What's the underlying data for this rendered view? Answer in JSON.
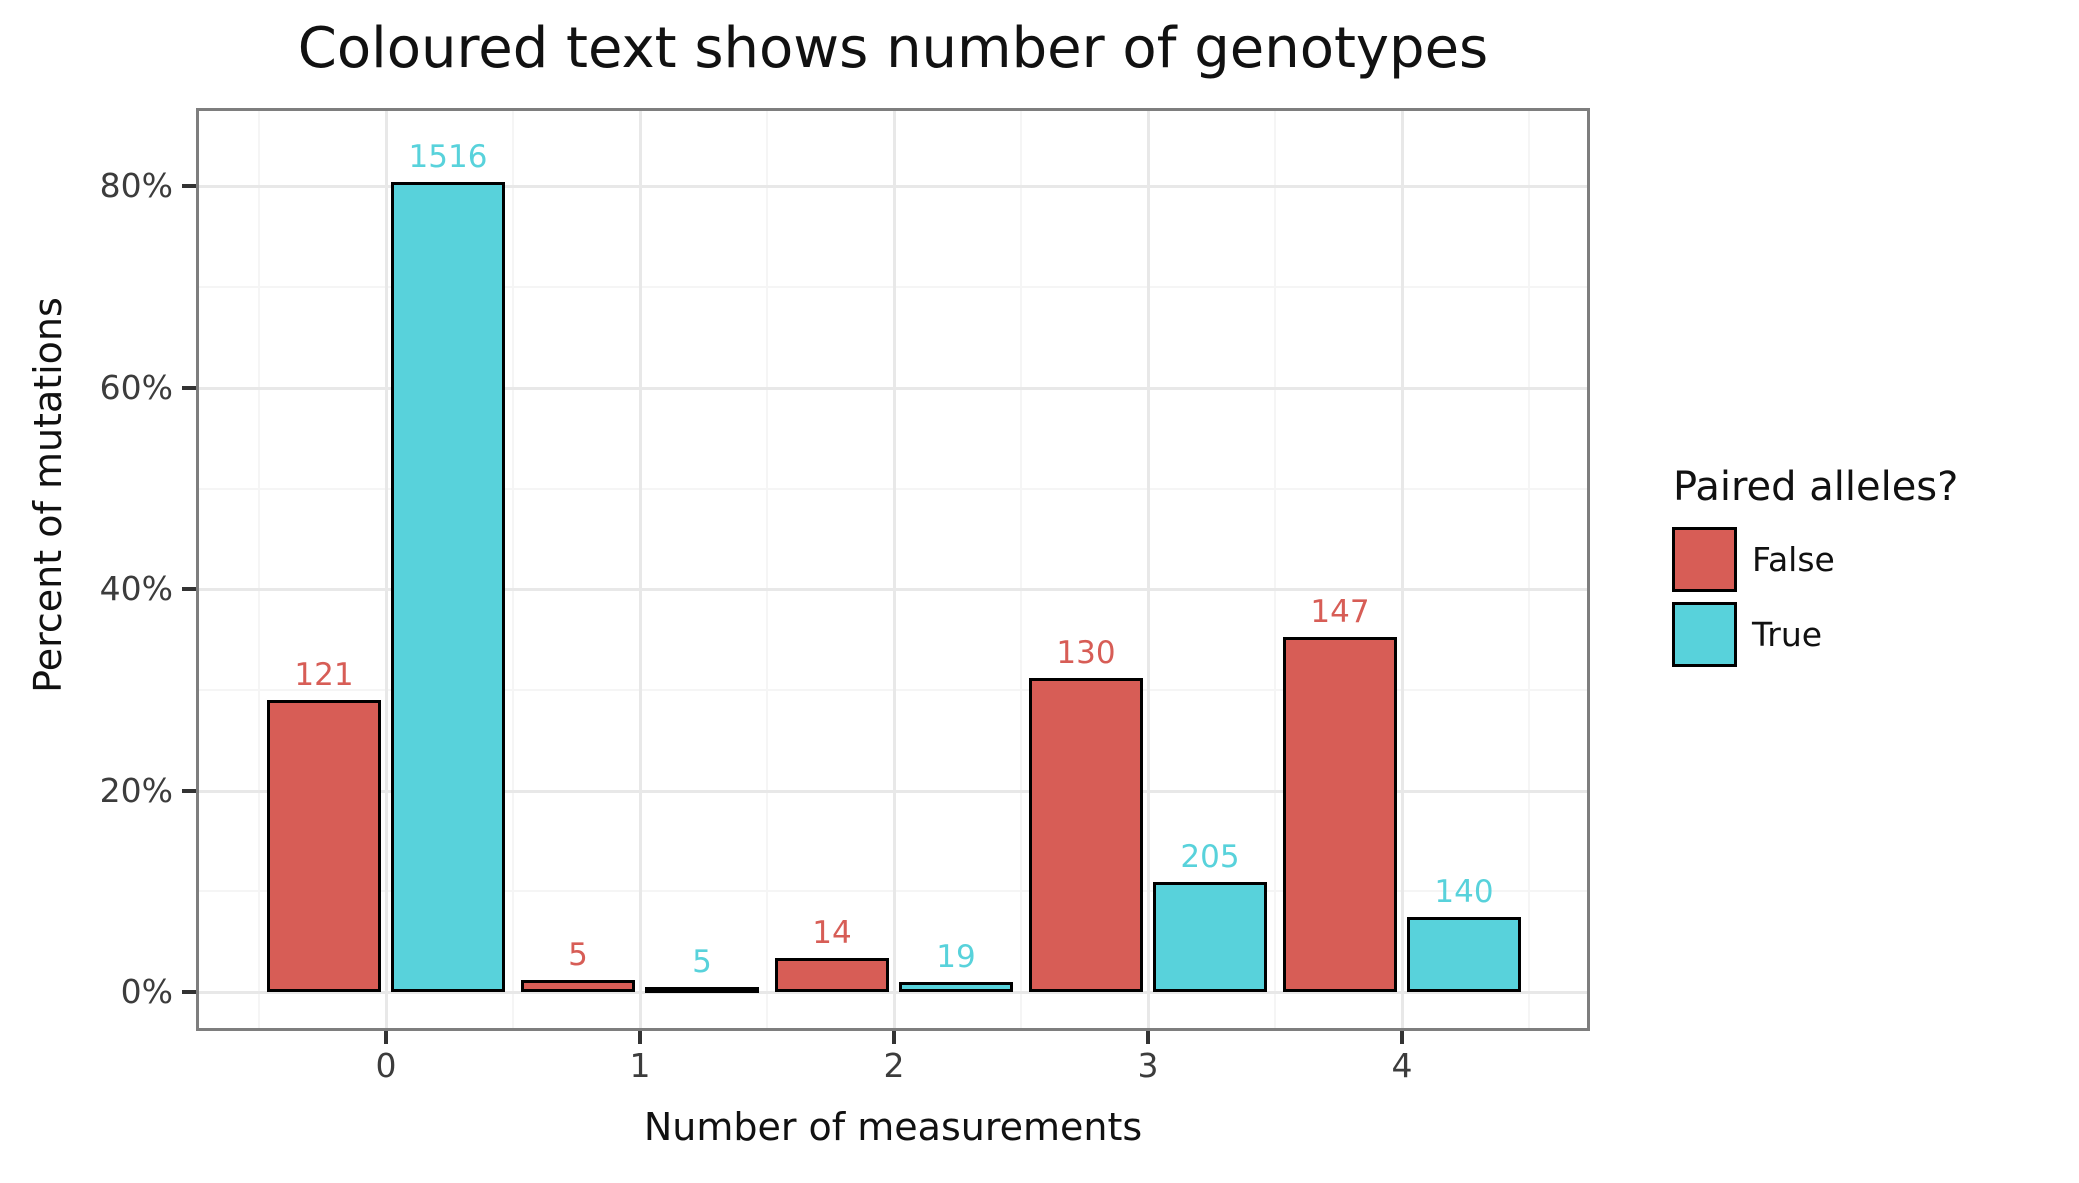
{
  "chart_data": {
    "type": "bar",
    "title": "Coloured text shows number of genotypes",
    "xlabel": "Number of measurements",
    "ylabel": "Percent of mutations",
    "categories": [
      "0",
      "1",
      "2",
      "3",
      "4"
    ],
    "series": [
      {
        "name": "False",
        "color": "#d75d56",
        "percents": [
          29.02,
          1.2,
          3.36,
          31.18,
          35.25
        ],
        "genotype_counts": [
          121,
          5,
          14,
          130,
          147
        ]
      },
      {
        "name": "True",
        "color": "#58d2db",
        "percents": [
          80.42,
          0.27,
          1.01,
          10.88,
          7.43
        ],
        "genotype_counts": [
          1516,
          5,
          19,
          205,
          140
        ]
      }
    ],
    "y_tick_values": [
      0,
      20,
      40,
      60,
      80
    ],
    "y_tick_labels": [
      "0%",
      "20%",
      "40%",
      "60%",
      "80%"
    ],
    "y_minor_gridlines": [
      10,
      30,
      50,
      70
    ],
    "x_minor_gridlines": [
      -0.5,
      0.5,
      1.5,
      2.5,
      3.5,
      4.5
    ],
    "ylim": [
      -3.9,
      87.8
    ],
    "grid": true,
    "legend_position": "right"
  },
  "legend": {
    "title": "Paired alleles?",
    "items": [
      {
        "label": "False",
        "color": "#d75d56"
      },
      {
        "label": "True",
        "color": "#58d2db"
      }
    ]
  },
  "colors": {
    "panel_border": "#7e7e7e",
    "major_grid": "#e8e8e8",
    "minor_grid": "#f5f5f5",
    "tick": "#333333",
    "tick_label": "#3c3c3c",
    "bar_border": "#000000"
  }
}
